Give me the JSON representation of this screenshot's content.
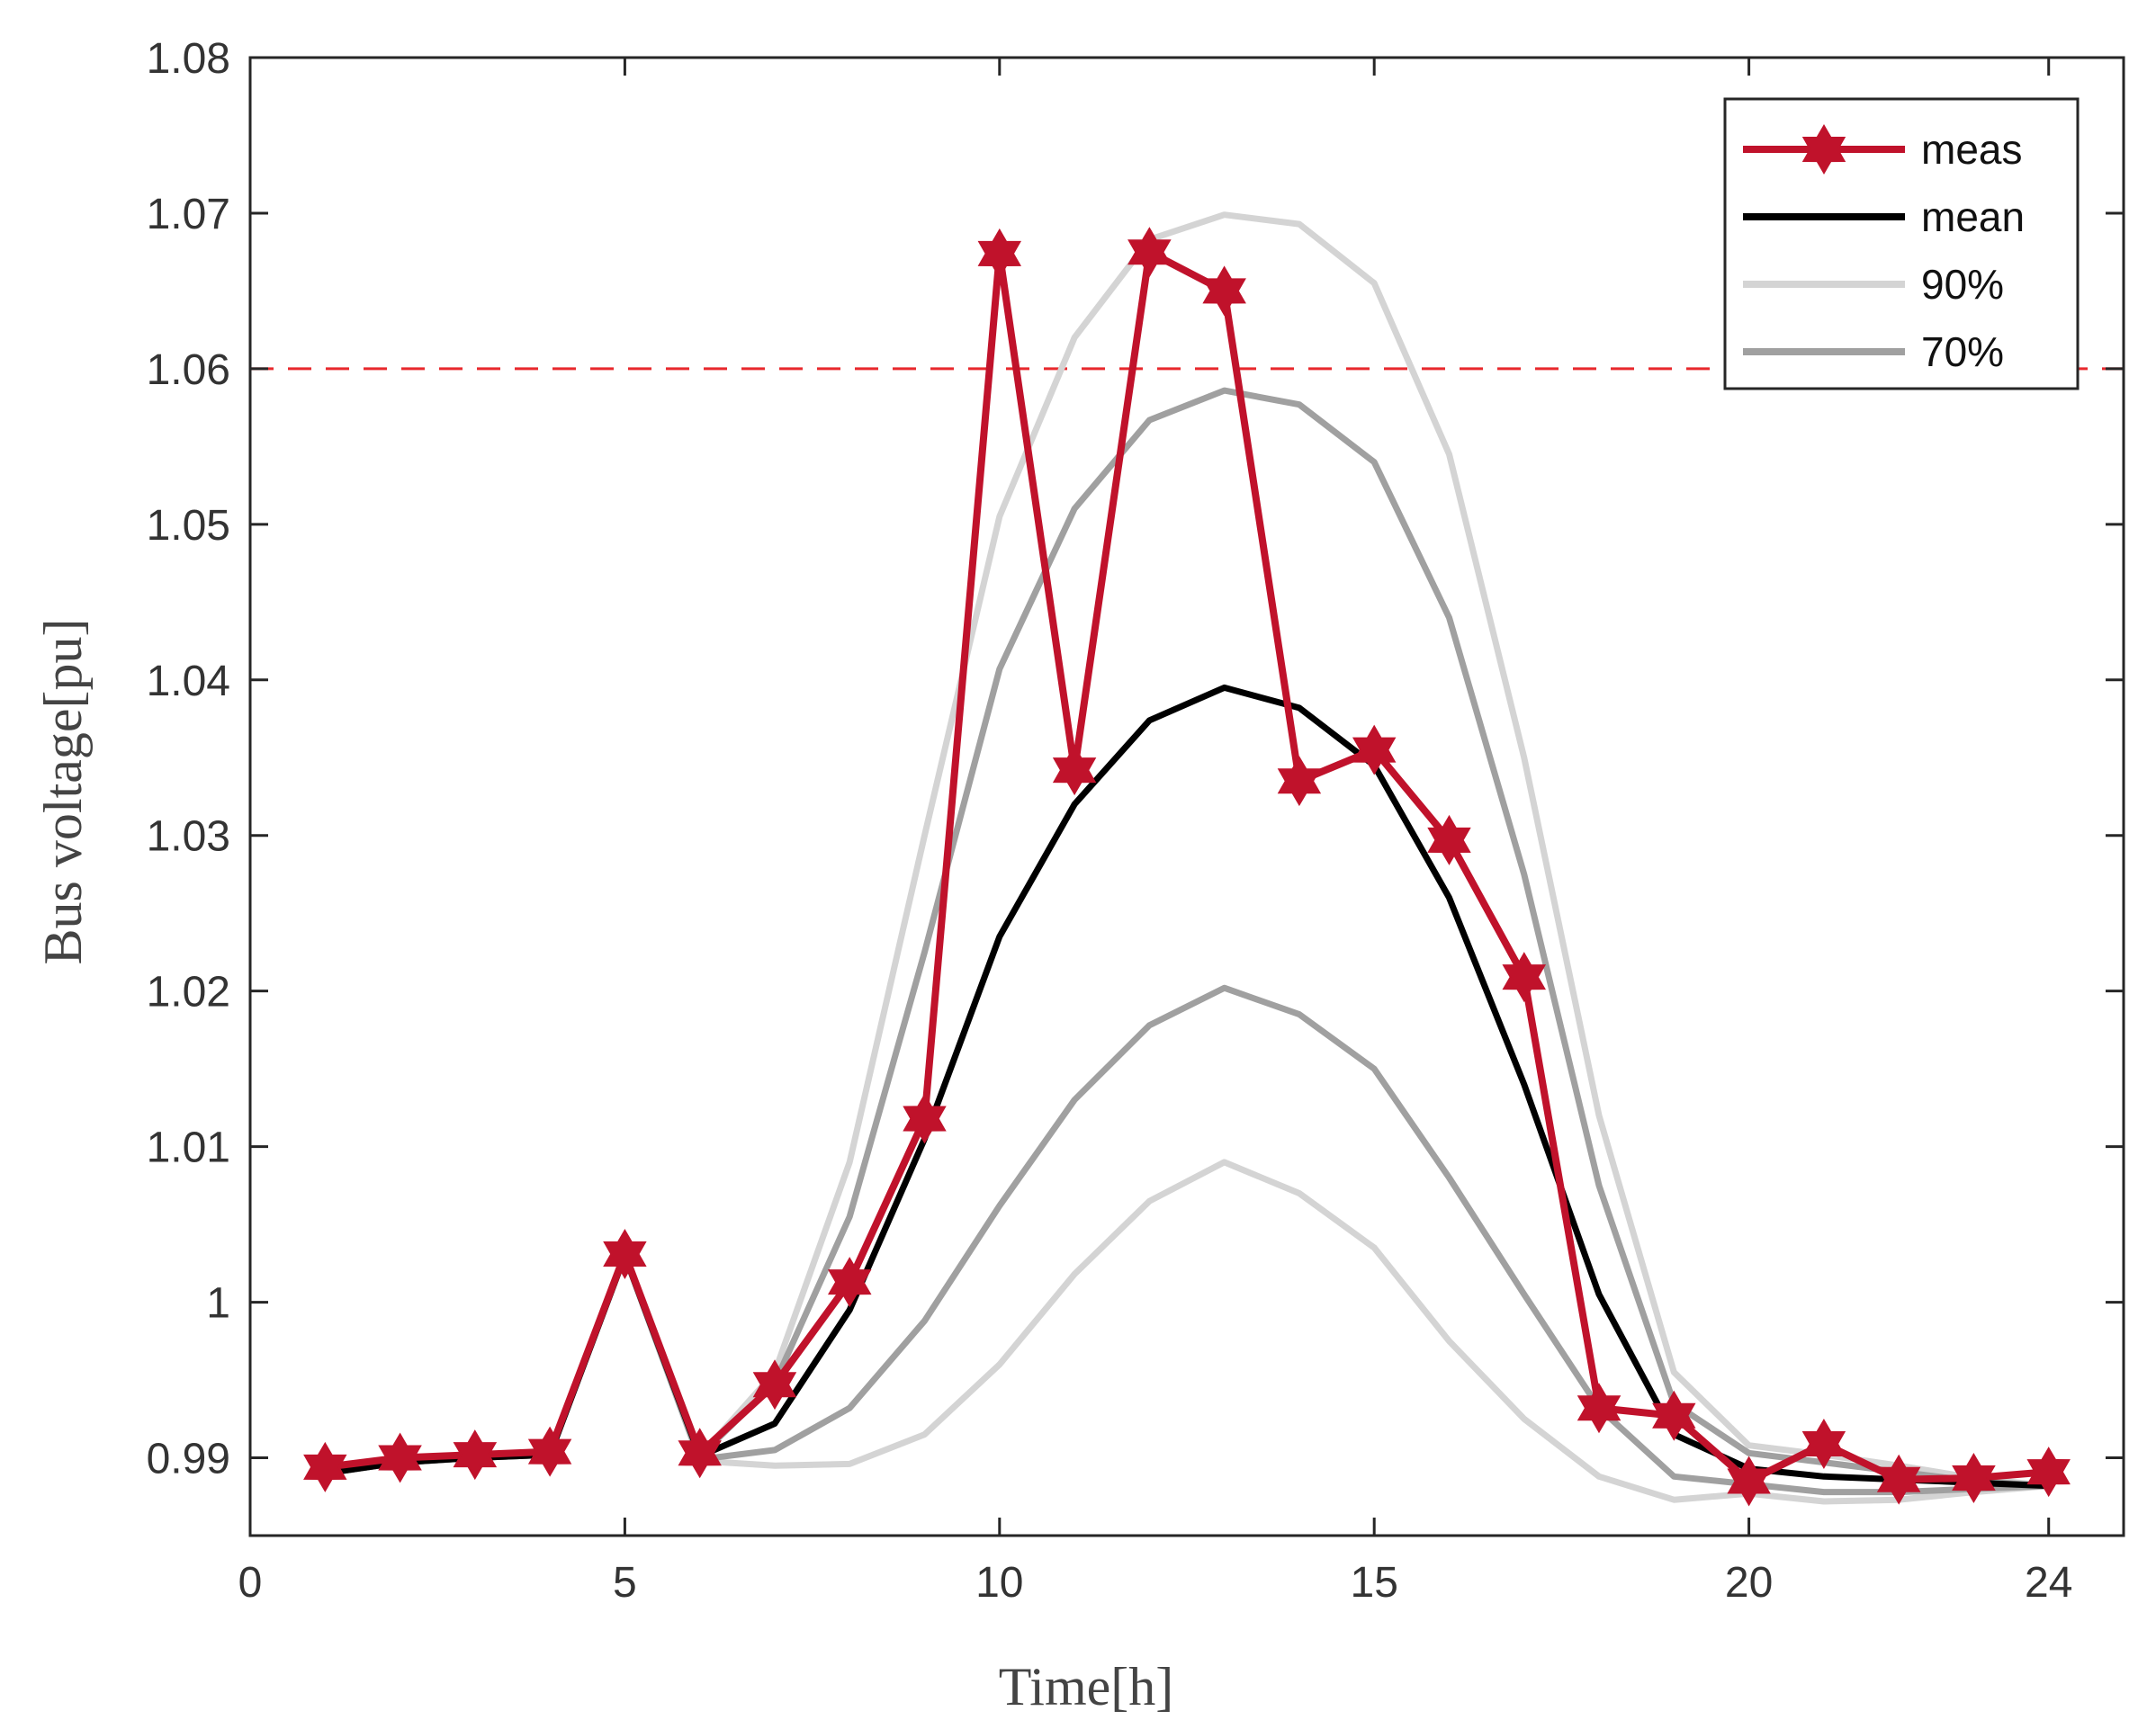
{
  "chart_data": {
    "type": "line",
    "title": "",
    "xlabel": "Time[h]",
    "ylabel": "Bus voltage[pu]",
    "xlim": [
      0,
      25
    ],
    "ylim": [
      0.985,
      1.08
    ],
    "xticks": [
      0,
      5,
      10,
      15,
      20,
      24
    ],
    "yticks": [
      0.99,
      1,
      1.01,
      1.02,
      1.03,
      1.04,
      1.05,
      1.06,
      1.07,
      1.08
    ],
    "xtick_labels": [
      "0",
      "5",
      "10",
      "15",
      "20",
      "24"
    ],
    "ytick_labels": [
      "0.99",
      "1",
      "1.01",
      "1.02",
      "1.03",
      "1.04",
      "1.05",
      "1.06",
      "1.07",
      "1.08"
    ],
    "grid": false,
    "legend_position": "top-right",
    "limit_line": {
      "y": 1.06,
      "color": "#e8282c",
      "style": "dashed"
    },
    "x": [
      1,
      2,
      3,
      4,
      5,
      6,
      7,
      8,
      9,
      10,
      11,
      12,
      13,
      14,
      15,
      16,
      17,
      18,
      19,
      20,
      21,
      22,
      23,
      24
    ],
    "series": [
      {
        "name": "90%",
        "role": "upper",
        "color": "#d4d4d4",
        "values": [
          0.989,
          0.9897,
          0.99,
          0.9902,
          1.003,
          0.9901,
          0.9955,
          1.009,
          1.03,
          1.0505,
          1.062,
          1.0683,
          1.0699,
          1.0693,
          1.0655,
          1.0545,
          1.035,
          1.012,
          0.9955,
          0.9908,
          0.9902,
          0.9895,
          0.9887,
          0.9882
        ]
      },
      {
        "name": "90%",
        "role": "lower",
        "color": "#d4d4d4",
        "values": [
          0.989,
          0.9897,
          0.99,
          0.9902,
          1.003,
          0.9898,
          0.9895,
          0.9896,
          0.9915,
          0.996,
          1.0018,
          1.0065,
          1.009,
          1.007,
          1.0035,
          0.9975,
          0.9925,
          0.9888,
          0.9873,
          0.9877,
          0.9872,
          0.9873,
          0.9878,
          0.9882
        ]
      },
      {
        "name": "70%",
        "role": "upper",
        "color": "#a0a0a0",
        "values": [
          0.989,
          0.9897,
          0.99,
          0.9902,
          1.003,
          0.9901,
          0.9948,
          1.0055,
          1.0225,
          1.0407,
          1.051,
          1.0567,
          1.0586,
          1.0577,
          1.054,
          1.044,
          1.0275,
          1.0075,
          0.9935,
          0.9903,
          0.9897,
          0.9891,
          0.9885,
          0.9882
        ]
      },
      {
        "name": "70%",
        "role": "lower",
        "color": "#a0a0a0",
        "values": [
          0.989,
          0.9897,
          0.99,
          0.9902,
          1.003,
          0.9899,
          0.9905,
          0.9932,
          0.9988,
          1.0062,
          1.013,
          1.0178,
          1.0202,
          1.0185,
          1.015,
          1.008,
          1.0005,
          0.9932,
          0.9888,
          0.9883,
          0.9878,
          0.9878,
          0.988,
          0.9882
        ]
      },
      {
        "name": "mean",
        "color": "#000000",
        "values": [
          0.989,
          0.9897,
          0.99,
          0.9902,
          1.003,
          0.9901,
          0.9922,
          0.9995,
          1.0105,
          1.0235,
          1.032,
          1.0374,
          1.0395,
          1.0382,
          1.0345,
          1.026,
          1.014,
          1.0005,
          0.9915,
          0.9893,
          0.9888,
          0.9886,
          0.9884,
          0.9882
        ]
      },
      {
        "name": "meas",
        "color": "#c0122b",
        "marker": "hexagram",
        "values": [
          0.9894,
          0.99,
          0.9902,
          0.9904,
          1.0031,
          0.9903,
          0.9947,
          1.0013,
          1.0118,
          1.0674,
          1.0342,
          1.0675,
          1.065,
          1.0335,
          1.0355,
          1.0297,
          1.0209,
          0.9932,
          0.9927,
          0.9885,
          0.9909,
          0.9886,
          0.9887,
          0.9891
        ]
      }
    ],
    "legend": [
      {
        "label": "meas",
        "color": "#c0122b",
        "marker": "hexagram"
      },
      {
        "label": "mean",
        "color": "#000000"
      },
      {
        "label": "90%",
        "color": "#d4d4d4"
      },
      {
        "label": "70%",
        "color": "#a0a0a0"
      }
    ]
  }
}
